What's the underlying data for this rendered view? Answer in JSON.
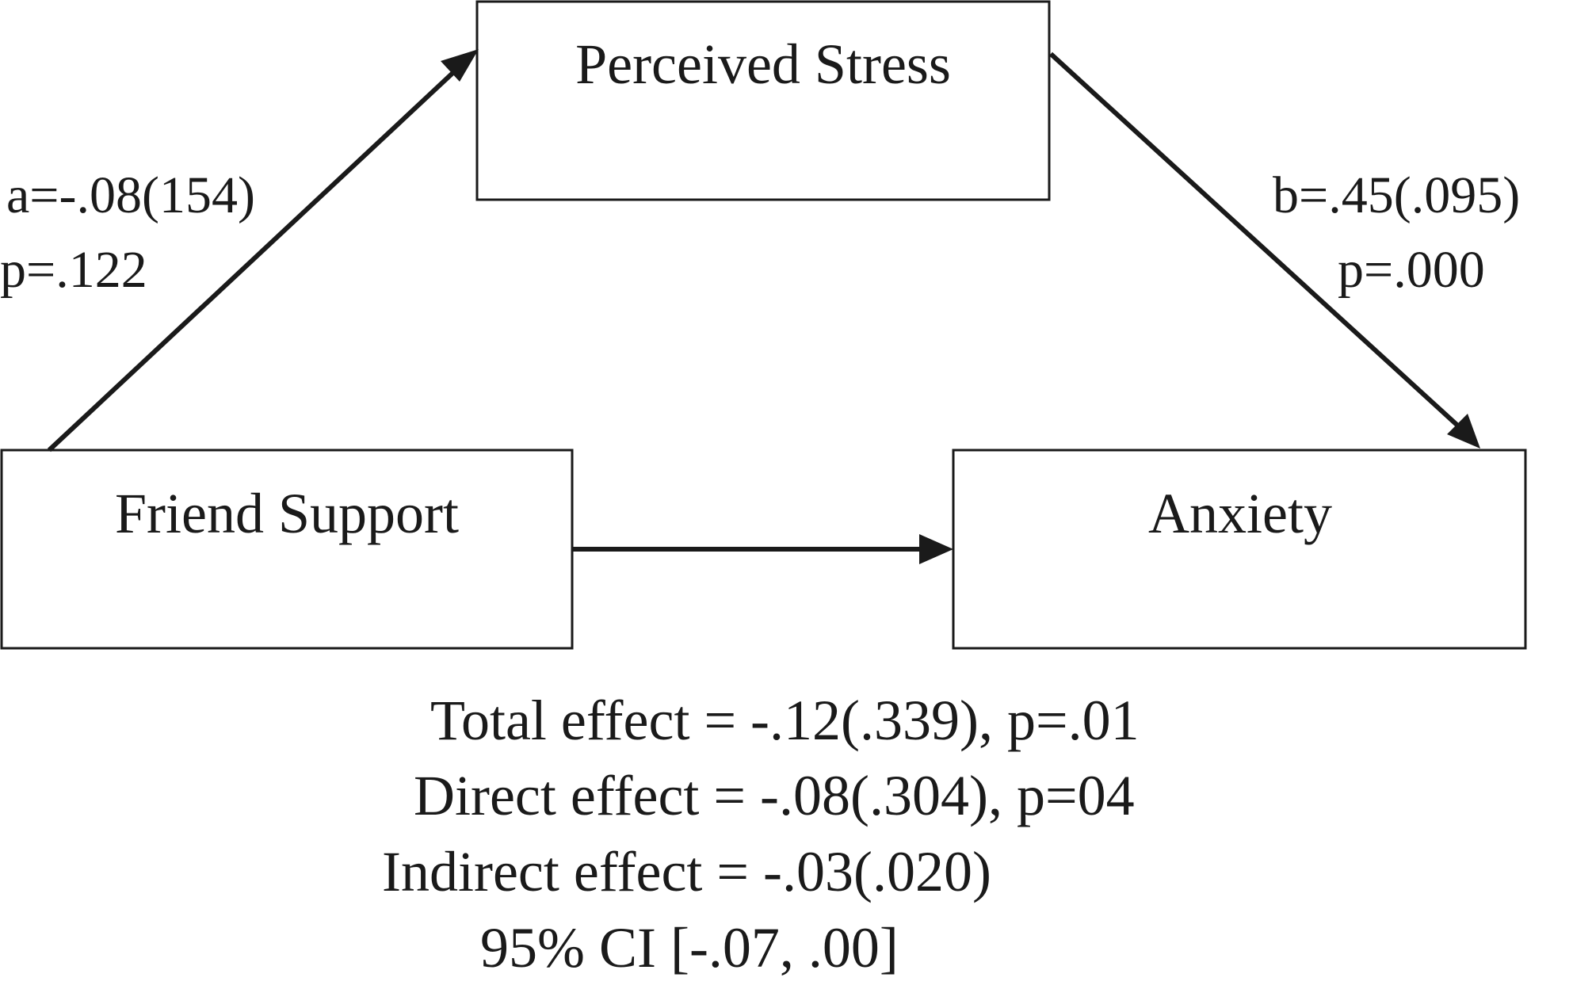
{
  "nodes": {
    "mediator": "Perceived Stress",
    "predictor": "Friend Support",
    "outcome": "Anxiety"
  },
  "paths": {
    "a": {
      "coef": "a=-.08(154)",
      "p": "p=.122"
    },
    "b": {
      "coef": "b=.45(.095)",
      "p": "p=.000"
    }
  },
  "effects": {
    "total": "Total effect = -.12(.339), p=.01",
    "direct": "Direct effect = -.08(.304), p=04",
    "indirect": "Indirect effect = -.03(.020)",
    "ci": "95% CI [-.07, .00]"
  },
  "colors": {
    "ink": "#1a1a1a",
    "background": "#ffffff"
  }
}
